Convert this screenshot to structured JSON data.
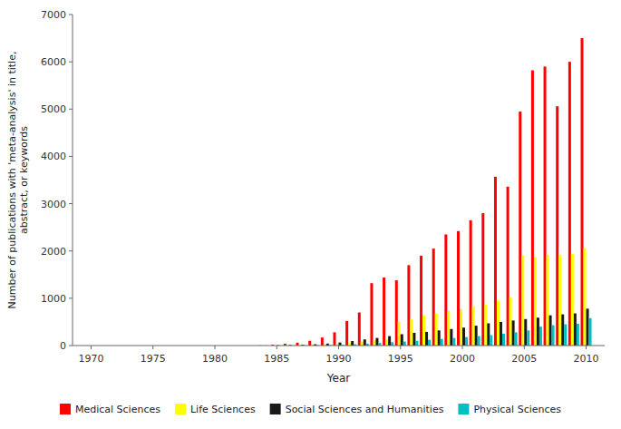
{
  "chart_data": {
    "type": "bar",
    "xlabel": "Year",
    "ylabel": "Number of publications with 'meta-analysis' in title,\nabstract, or keywords",
    "x": [
      1970,
      1971,
      1972,
      1973,
      1974,
      1975,
      1976,
      1977,
      1978,
      1979,
      1980,
      1981,
      1982,
      1983,
      1984,
      1985,
      1986,
      1987,
      1988,
      1989,
      1990,
      1991,
      1992,
      1993,
      1994,
      1995,
      1996,
      1997,
      1998,
      1999,
      2000,
      2001,
      2002,
      2003,
      2004,
      2005,
      2006,
      2007,
      2008,
      2009,
      2010
    ],
    "series": [
      {
        "name": "Medical Sciences",
        "color": "#FF0000",
        "values": [
          0,
          0,
          0,
          0,
          0,
          0,
          0,
          0,
          0,
          0,
          0,
          0,
          0,
          0,
          5,
          20,
          40,
          60,
          100,
          170,
          280,
          520,
          700,
          1320,
          1440,
          1380,
          1700,
          1900,
          2050,
          2350,
          2420,
          2650,
          2800,
          3570,
          3360,
          4950,
          5820,
          5900,
          5060,
          6000,
          6500
        ]
      },
      {
        "name": "Life Sciences",
        "color": "#FFFF00",
        "values": [
          0,
          0,
          0,
          0,
          0,
          0,
          0,
          0,
          0,
          0,
          0,
          0,
          0,
          0,
          1,
          3,
          5,
          10,
          15,
          22,
          35,
          55,
          80,
          110,
          130,
          500,
          550,
          640,
          680,
          730,
          770,
          820,
          870,
          950,
          1020,
          1900,
          1870,
          1920,
          1920,
          1940,
          2050
        ]
      },
      {
        "name": "Social Sciences and Humanities",
        "color": "#1a1a1a",
        "values": [
          0,
          0,
          0,
          0,
          0,
          0,
          0,
          0,
          0,
          0,
          0,
          0,
          0,
          0,
          2,
          8,
          12,
          18,
          28,
          42,
          65,
          95,
          130,
          160,
          200,
          240,
          270,
          290,
          320,
          350,
          380,
          420,
          470,
          500,
          530,
          560,
          590,
          640,
          660,
          680,
          780
        ]
      },
      {
        "name": "Physical Sciences",
        "color": "#00BFBF",
        "values": [
          0,
          0,
          0,
          0,
          0,
          0,
          0,
          0,
          0,
          0,
          0,
          0,
          0,
          0,
          0,
          2,
          3,
          5,
          8,
          12,
          18,
          28,
          40,
          55,
          70,
          85,
          100,
          120,
          140,
          160,
          180,
          200,
          220,
          250,
          280,
          320,
          400,
          430,
          450,
          460,
          580
        ]
      }
    ],
    "xlim": [
      1968.5,
      2011.5
    ],
    "ylim": [
      0,
      7000
    ],
    "xticks": [
      1970,
      1975,
      1980,
      1985,
      1990,
      1995,
      2000,
      2005,
      2010
    ],
    "yticks": [
      0,
      1000,
      2000,
      3000,
      4000,
      5000,
      6000,
      7000
    ],
    "grid": false,
    "legend": "bottom"
  }
}
